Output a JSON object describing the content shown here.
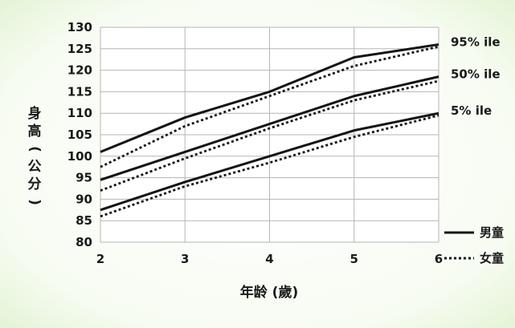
{
  "colors": {
    "background_glow": "#eaf7df",
    "plot_bg": "#ffffff",
    "grid": "#b5b5b5",
    "line": "#141414"
  },
  "chart_data": {
    "type": "line",
    "x": [
      2,
      3,
      4,
      5,
      6
    ],
    "xlabel": "年龄 (歲)",
    "ylabel": "身高 (公分)",
    "ylim": [
      80,
      130
    ],
    "yticks": [
      80,
      85,
      90,
      95,
      100,
      105,
      110,
      115,
      120,
      125,
      130
    ],
    "xticks": [
      2,
      3,
      4,
      5,
      6
    ],
    "grid": true,
    "series_labels": [
      "95% ile",
      "50% ile",
      "5% ile"
    ],
    "series": [
      {
        "group": "95% ile",
        "style": "solid",
        "values": [
          101,
          109,
          115,
          123,
          126
        ]
      },
      {
        "group": "95% ile",
        "style": "dotted",
        "values": [
          97.5,
          107,
          114,
          121,
          125.5
        ]
      },
      {
        "group": "50% ile",
        "style": "solid",
        "values": [
          94.5,
          101,
          107.5,
          114,
          118.5
        ]
      },
      {
        "group": "50% ile",
        "style": "dotted",
        "values": [
          92,
          99.5,
          106.5,
          113,
          117.5
        ]
      },
      {
        "group": "5% ile",
        "style": "solid",
        "values": [
          87.5,
          94,
          100,
          106,
          110
        ]
      },
      {
        "group": "5% ile",
        "style": "dotted",
        "values": [
          86,
          93,
          98.5,
          104.5,
          109.5
        ]
      }
    ],
    "legend": {
      "placement": "right",
      "entries": [
        {
          "label": "男童",
          "style": "solid"
        },
        {
          "label": "女童",
          "style": "dotted"
        }
      ]
    }
  }
}
